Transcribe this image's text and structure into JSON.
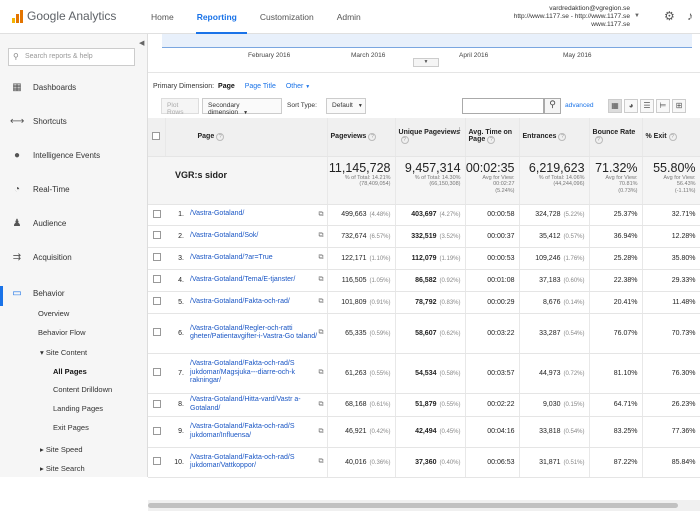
{
  "app": {
    "name": "Google Analytics"
  },
  "nav": {
    "tabs": [
      "Home",
      "Reporting",
      "Customization",
      "Admin"
    ]
  },
  "account": {
    "email": "vardredaktion@vgregion.se",
    "property": "http://www.1177.se - http://www.1177.se",
    "view": "www.1177.se"
  },
  "sidebar": {
    "search_placeholder": "Search reports & help",
    "items": [
      {
        "label": "Dashboards",
        "icon": "grid-icon"
      },
      {
        "label": "Shortcuts",
        "icon": "shortcut-arrows-icon"
      },
      {
        "label": "Intelligence Events",
        "icon": "lightbulb-icon"
      },
      {
        "label": "Real-Time",
        "icon": "clock-icon"
      },
      {
        "label": "Audience",
        "icon": "people-icon"
      },
      {
        "label": "Acquisition",
        "icon": "acquisition-arrows-icon"
      },
      {
        "label": "Behavior",
        "icon": "behavior-icon"
      }
    ],
    "behavior_sub": {
      "overview": "Overview",
      "behavior_flow": "Behavior Flow",
      "site_content": "Site Content",
      "all_pages": "All Pages",
      "content_drilldown": "Content Drilldown",
      "landing_pages": "Landing Pages",
      "exit_pages": "Exit Pages",
      "site_speed": "Site Speed",
      "site_search": "Site Search"
    }
  },
  "chart": {
    "months": [
      "February 2016",
      "March 2016",
      "April 2016",
      "May 2016"
    ]
  },
  "primary_dimension": {
    "label": "Primary Dimension:",
    "active": "Page",
    "options": [
      "Page Title",
      "Other"
    ]
  },
  "controls": {
    "plot_rows": "Plot Rows",
    "secondary_dimension": "Secondary dimension",
    "sort_type_label": "Sort Type:",
    "sort_type_value": "Default",
    "advanced": "advanced"
  },
  "table": {
    "headers": {
      "page": "Page",
      "pageviews": "Pageviews",
      "unique_pageviews": "Unique Pageviews",
      "avg_time": "Avg. Time on Page",
      "entrances": "Entrances",
      "bounce_rate": "Bounce Rate",
      "exit": "% Exit"
    },
    "totals": {
      "title": "VGR:s sidor",
      "pageviews": "11,145,728",
      "pageviews_sub1": "% of Total: 14.21%",
      "pageviews_sub2": "(78,409,054)",
      "unique": "9,457,314",
      "unique_sub1": "% of Total: 14.30%",
      "unique_sub2": "(66,150,308)",
      "avg_time": "00:02:35",
      "avg_time_sub1": "Avg for View:",
      "avg_time_sub2": "00:02:27",
      "avg_time_sub3": "(5.24%)",
      "entrances": "6,219,623",
      "entrances_sub1": "% of Total: 14.06%",
      "entrances_sub2": "(44,244,096)",
      "bounce": "71.32%",
      "bounce_sub1": "Avg for View:",
      "bounce_sub2": "70.81%",
      "bounce_sub3": "(0.73%)",
      "exit": "55.80%",
      "exit_sub1": "Avg for View:",
      "exit_sub2": "56.43%",
      "exit_sub3": "(-1.11%)"
    },
    "rows": [
      {
        "idx": "1.",
        "page": "/Vastra-Gotaland/",
        "pv": "499,663",
        "pv_pct": "(4.48%)",
        "upv": "403,697",
        "upv_pct": "(4.27%)",
        "time": "00:00:58",
        "ent": "324,728",
        "ent_pct": "(5.22%)",
        "bounce": "25.37%",
        "exit": "32.71%"
      },
      {
        "idx": "2.",
        "page": "/Vastra-Gotaland/Sok/",
        "pv": "732,674",
        "pv_pct": "(6.57%)",
        "upv": "332,519",
        "upv_pct": "(3.52%)",
        "time": "00:00:37",
        "ent": "35,412",
        "ent_pct": "(0.57%)",
        "bounce": "36.94%",
        "exit": "12.28%"
      },
      {
        "idx": "3.",
        "page": "/Vastra-Gotaland/?ar=True",
        "pv": "122,171",
        "pv_pct": "(1.10%)",
        "upv": "112,079",
        "upv_pct": "(1.19%)",
        "time": "00:00:53",
        "ent": "109,246",
        "ent_pct": "(1.76%)",
        "bounce": "25.28%",
        "exit": "35.80%"
      },
      {
        "idx": "4.",
        "page": "/Vastra-Gotaland/Tema/E-tjanster/",
        "pv": "116,505",
        "pv_pct": "(1.05%)",
        "upv": "86,582",
        "upv_pct": "(0.92%)",
        "time": "00:01:08",
        "ent": "37,183",
        "ent_pct": "(0.60%)",
        "bounce": "22.38%",
        "exit": "29.33%"
      },
      {
        "idx": "5.",
        "page": "/Vastra-Gotaland/Fakta-och-rad/",
        "pv": "101,809",
        "pv_pct": "(0.91%)",
        "upv": "78,792",
        "upv_pct": "(0.83%)",
        "time": "00:00:29",
        "ent": "8,676",
        "ent_pct": "(0.14%)",
        "bounce": "20.41%",
        "exit": "11.48%"
      },
      {
        "idx": "6.",
        "page": "/Vastra-Gotaland/Regler-och-ratti gheter/Patientavgifter-i-Vastra-Go taland/",
        "pv": "65,335",
        "pv_pct": "(0.59%)",
        "upv": "58,607",
        "upv_pct": "(0.62%)",
        "time": "00:03:22",
        "ent": "33,287",
        "ent_pct": "(0.54%)",
        "bounce": "76.07%",
        "exit": "70.73%"
      },
      {
        "idx": "7.",
        "page": "/Vastra-Gotaland/Fakta-och-rad/S jukdomar/Magsjuka---diarre-och-k rakningar/",
        "pv": "61,263",
        "pv_pct": "(0.55%)",
        "upv": "54,534",
        "upv_pct": "(0.58%)",
        "time": "00:03:57",
        "ent": "44,973",
        "ent_pct": "(0.72%)",
        "bounce": "81.10%",
        "exit": "76.30%"
      },
      {
        "idx": "8.",
        "page": "/Vastra-Gotaland/Hitta-vard/Vastr a-Gotaland/",
        "pv": "68,168",
        "pv_pct": "(0.61%)",
        "upv": "51,879",
        "upv_pct": "(0.55%)",
        "time": "00:02:22",
        "ent": "9,030",
        "ent_pct": "(0.15%)",
        "bounce": "64.71%",
        "exit": "26.23%"
      },
      {
        "idx": "9.",
        "page": "/Vastra-Gotaland/Fakta-och-rad/S jukdomar/Influensa/",
        "pv": "46,921",
        "pv_pct": "(0.42%)",
        "upv": "42,494",
        "upv_pct": "(0.45%)",
        "time": "00:04:16",
        "ent": "33,818",
        "ent_pct": "(0.54%)",
        "bounce": "83.25%",
        "exit": "77.36%"
      },
      {
        "idx": "10.",
        "page": "/Vastra-Gotaland/Fakta-och-rad/S jukdomar/Vattkoppor/",
        "pv": "40,016",
        "pv_pct": "(0.36%)",
        "upv": "37,360",
        "upv_pct": "(0.40%)",
        "time": "00:06:53",
        "ent": "31,871",
        "ent_pct": "(0.51%)",
        "bounce": "87.22%",
        "exit": "85.84%"
      }
    ]
  }
}
